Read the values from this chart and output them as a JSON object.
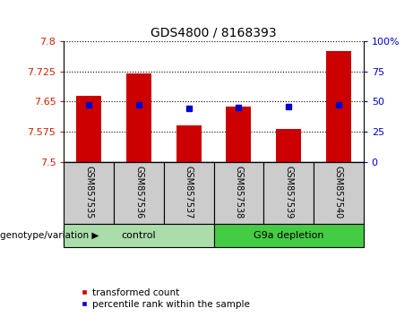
{
  "title": "GDS4800 / 8168393",
  "samples": [
    "GSM857535",
    "GSM857536",
    "GSM857537",
    "GSM857538",
    "GSM857539",
    "GSM857540"
  ],
  "transformed_counts": [
    7.665,
    7.72,
    7.59,
    7.638,
    7.582,
    7.775
  ],
  "percentile_ranks": [
    47,
    47,
    44,
    45,
    46,
    47
  ],
  "ymin": 7.5,
  "ymax": 7.8,
  "yticks": [
    7.5,
    7.575,
    7.65,
    7.725,
    7.8
  ],
  "ytick_labels": [
    "7.5",
    "7.575",
    "7.65",
    "7.725",
    "7.8"
  ],
  "y2min": 0,
  "y2max": 100,
  "y2ticks": [
    0,
    25,
    50,
    75,
    100
  ],
  "y2tick_labels": [
    "0",
    "25",
    "50",
    "75",
    "100%"
  ],
  "bar_color": "#cc0000",
  "dot_color": "#0000cc",
  "bar_width": 0.5,
  "groups": [
    {
      "label": "control",
      "samples": [
        0,
        1,
        2
      ],
      "color": "#aaddaa"
    },
    {
      "label": "G9a depletion",
      "samples": [
        3,
        4,
        5
      ],
      "color": "#44cc44"
    }
  ],
  "group_label_prefix": "genotype/variation",
  "legend_bar_label": "transformed count",
  "legend_dot_label": "percentile rank within the sample",
  "tick_color_left": "#cc2200",
  "tick_color_right": "#0000cc",
  "sample_box_color": "#cccccc",
  "figsize": [
    4.61,
    3.54
  ],
  "dpi": 100
}
